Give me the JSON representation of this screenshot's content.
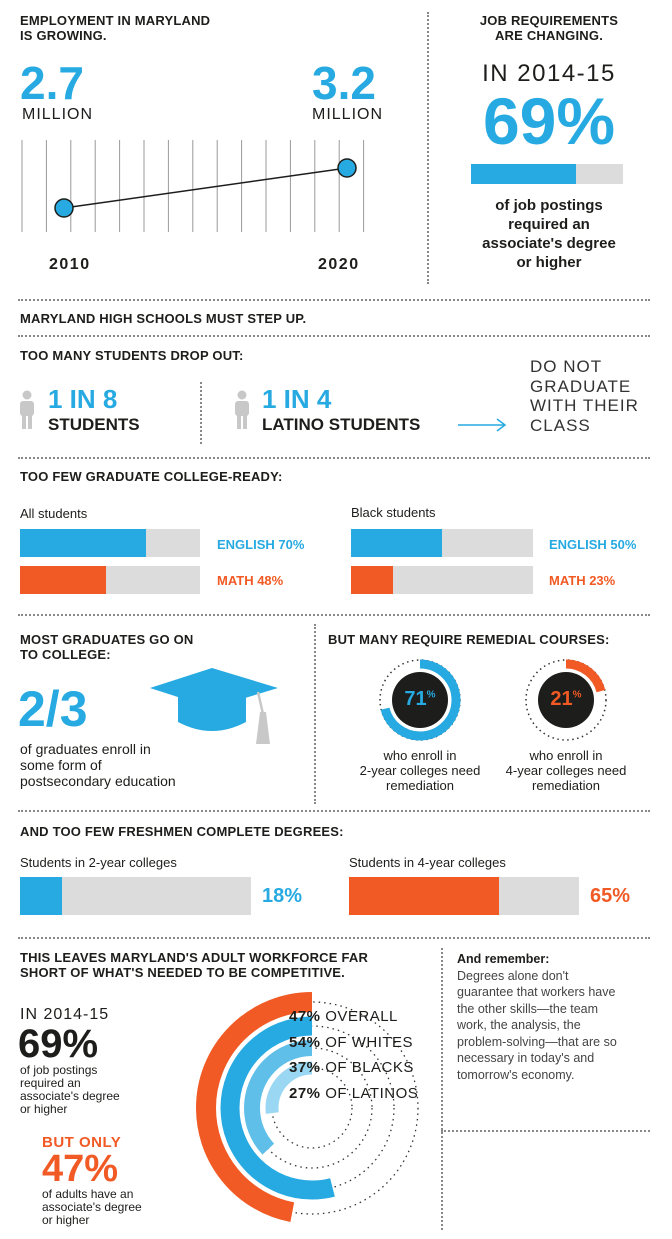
{
  "employment": {
    "title_line1": "EMPLOYMENT IN MARYLAND",
    "title_line2": "IS GROWING.",
    "value_2010": "2.7",
    "unit_2010": "MILLION",
    "value_2020": "3.2",
    "unit_2020": "MILLION",
    "year_2010": "2010",
    "year_2020": "2020"
  },
  "requirements": {
    "title_line1": "JOB REQUIREMENTS",
    "title_line2": "ARE CHANGING.",
    "year_label": "IN 2014-15",
    "percent": "69%",
    "fill_fraction": 0.69,
    "desc_line1": "of job postings",
    "desc_line2": "required an",
    "desc_line3": "associate's degree",
    "desc_line4": "or higher"
  },
  "highschools": {
    "title": "MARYLAND HIGH SCHOOLS MUST STEP UP."
  },
  "dropout": {
    "title": "TOO MANY STUDENTS DROP OUT:",
    "stat1_num": "1 IN 8",
    "stat1_label": "STUDENTS",
    "stat2_num": "1 IN 4",
    "stat2_label": "LATINO STUDENTS",
    "result_line1": "DO NOT",
    "result_line2": "GRADUATE",
    "result_line3": "WITH THEIR",
    "result_line4": "CLASS"
  },
  "college_ready": {
    "title": "TOO FEW GRADUATE COLLEGE-READY:",
    "all_label": "All students",
    "all_english": "ENGLISH 70%",
    "all_english_value": 0.7,
    "all_math": "MATH 48%",
    "all_math_value": 0.48,
    "black_label": "Black students",
    "black_english": "ENGLISH 50%",
    "black_english_value": 0.5,
    "black_math": "MATH 23%",
    "black_math_value": 0.23
  },
  "go_on": {
    "title_line1": "MOST GRADUATES GO ON",
    "title_line2": "TO COLLEGE:",
    "fraction": "2/3",
    "desc_line1": "of graduates enroll in",
    "desc_line2": "some form of",
    "desc_line3": "postsecondary education"
  },
  "remedial": {
    "title": "BUT MANY REQUIRE REMEDIAL COURSES:",
    "two_year_pct": "71",
    "two_year_value": 0.71,
    "two_year_desc_line1": "who enroll in",
    "two_year_desc_line2": "2-year colleges need",
    "two_year_desc_line3": "remediation",
    "four_year_pct": "21",
    "four_year_value": 0.21,
    "four_year_desc_line1": "who enroll in",
    "four_year_desc_line2": "4-year colleges need",
    "four_year_desc_line3": "remediation",
    "pct_sign": "%"
  },
  "complete": {
    "title": "AND TOO FEW FRESHMEN COMPLETE DEGREES:",
    "two_year_label": "Students in 2-year colleges",
    "two_year_pct": "18%",
    "two_year_value": 0.18,
    "four_year_label": "Students in 4-year colleges",
    "four_year_pct": "65%",
    "four_year_value": 0.65
  },
  "workforce": {
    "title_line1": "THIS LEAVES MARYLAND'S ADULT WORKFORCE FAR",
    "title_line2": "SHORT OF WHAT'S NEEDED TO BE COMPETITIVE.",
    "year_label": "IN 2014-15",
    "percent": "69%",
    "desc_line1": "of job postings",
    "desc_line2": "required an",
    "desc_line3": "associate's degree",
    "desc_line4": "or higher",
    "but_only": "BUT ONLY",
    "adult_percent": "47%",
    "adult_desc_line1": "of adults have an",
    "adult_desc_line2": "associate's degree",
    "adult_desc_line3": "or higher",
    "rings": [
      {
        "pct": "47%",
        "label": "OVERALL",
        "value": 0.47,
        "color": "#f15a24"
      },
      {
        "pct": "54%",
        "label": "OF WHITES",
        "value": 0.54,
        "color": "#27aae1"
      },
      {
        "pct": "37%",
        "label": "OF BLACKS",
        "value": 0.37,
        "color": "#5fbfe8"
      },
      {
        "pct": "27%",
        "label": "OF LATINOS",
        "value": 0.27,
        "color": "#9ad7f2"
      }
    ]
  },
  "remember": {
    "title": "And remember:",
    "line1": "Degrees alone don't",
    "line2": "guarantee that workers have",
    "line3": "the other skills—the team",
    "line4": "work, the analysis, the",
    "line5": "problem-solving—that are so",
    "line6": "necessary in today's and",
    "line7": "tomorrow's economy."
  },
  "colors": {
    "blue": "#27aae1",
    "orange": "#f15a24",
    "gray": "#dcdcdc",
    "dark": "#1d1d1b"
  }
}
